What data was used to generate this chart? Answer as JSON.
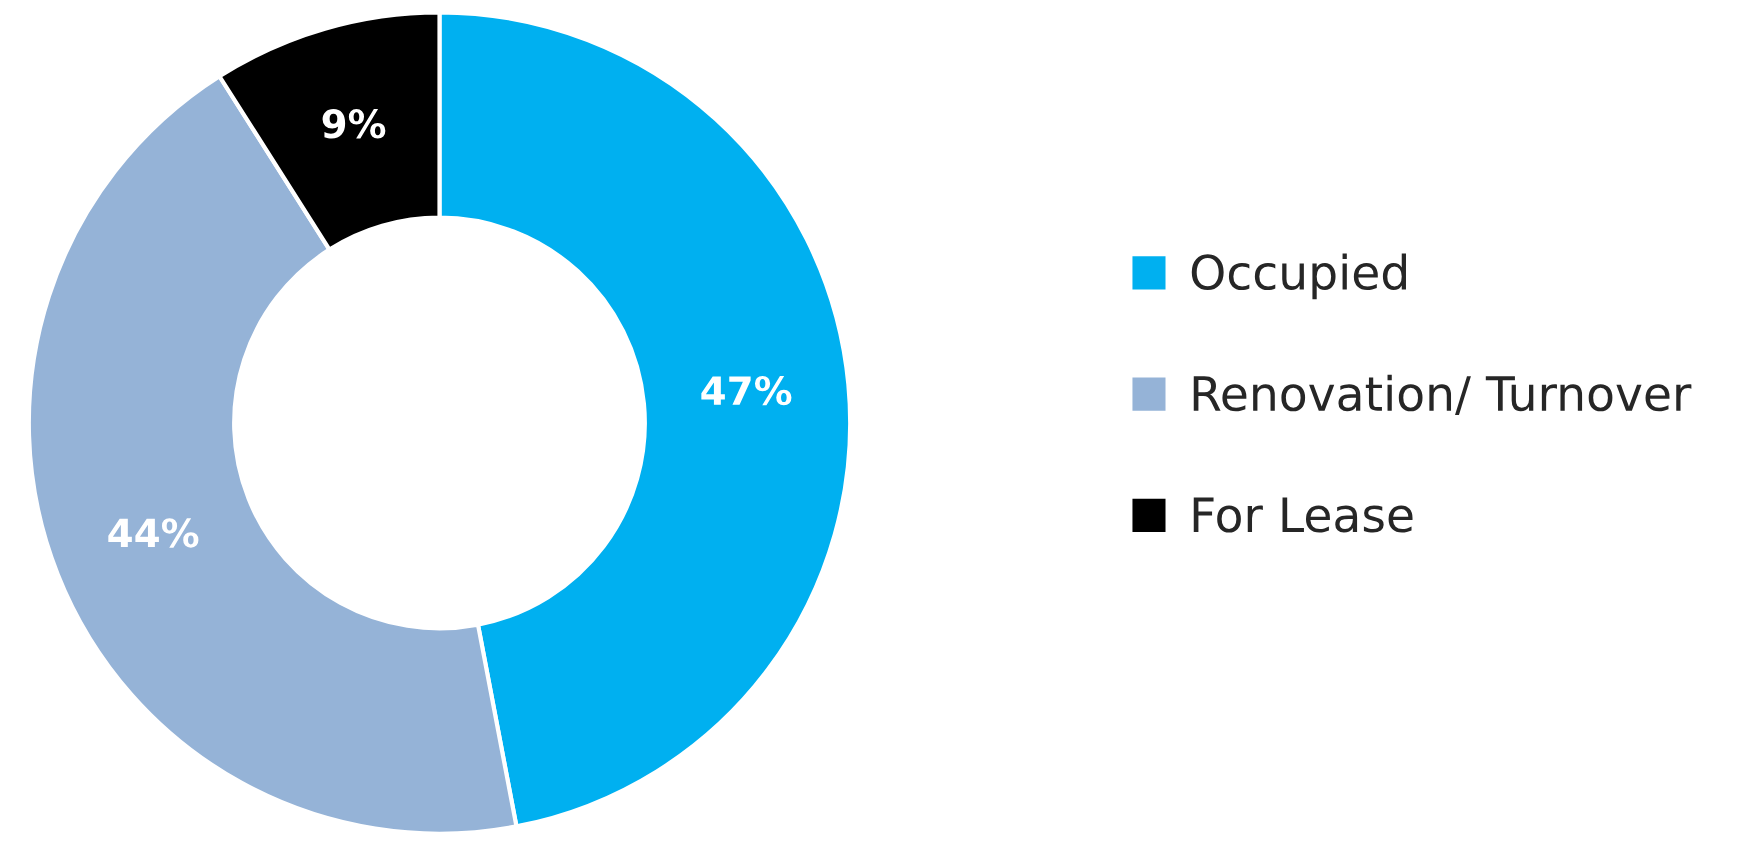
{
  "chart_data": {
    "type": "donut",
    "categories": [
      "Occupied",
      "Renovation/ Turnover",
      "For Lease"
    ],
    "values": [
      47,
      44,
      9
    ],
    "colors": [
      "#00b0f0",
      "#95b3d7",
      "#000000"
    ],
    "value_labels": [
      "47%",
      "44%",
      "9%"
    ],
    "legend": "right"
  }
}
